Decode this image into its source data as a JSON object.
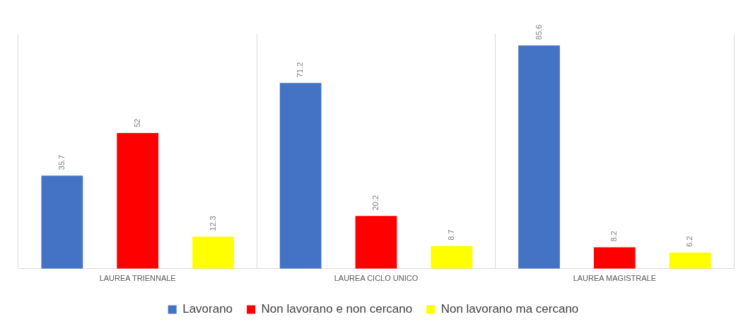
{
  "chart_data": {
    "type": "bar",
    "categories": [
      "LAUREA TRIENNALE",
      "LAUREA CICLO UNICO",
      "LAUREA MAGISTRALE"
    ],
    "series": [
      {
        "name": "Lavorano",
        "color": "#4472c4",
        "values": [
          35.7,
          71.2,
          85.6
        ]
      },
      {
        "name": "Non lavorano e non cercano",
        "color": "#ff0000",
        "values": [
          52,
          20.2,
          8.2
        ]
      },
      {
        "name": "Non lavorano ma cercano",
        "color": "#ffff00",
        "values": [
          12.3,
          8.7,
          6.2
        ]
      }
    ],
    "data_labels": true,
    "grid": "x",
    "legend": "bottom",
    "tick_labels": "x"
  }
}
